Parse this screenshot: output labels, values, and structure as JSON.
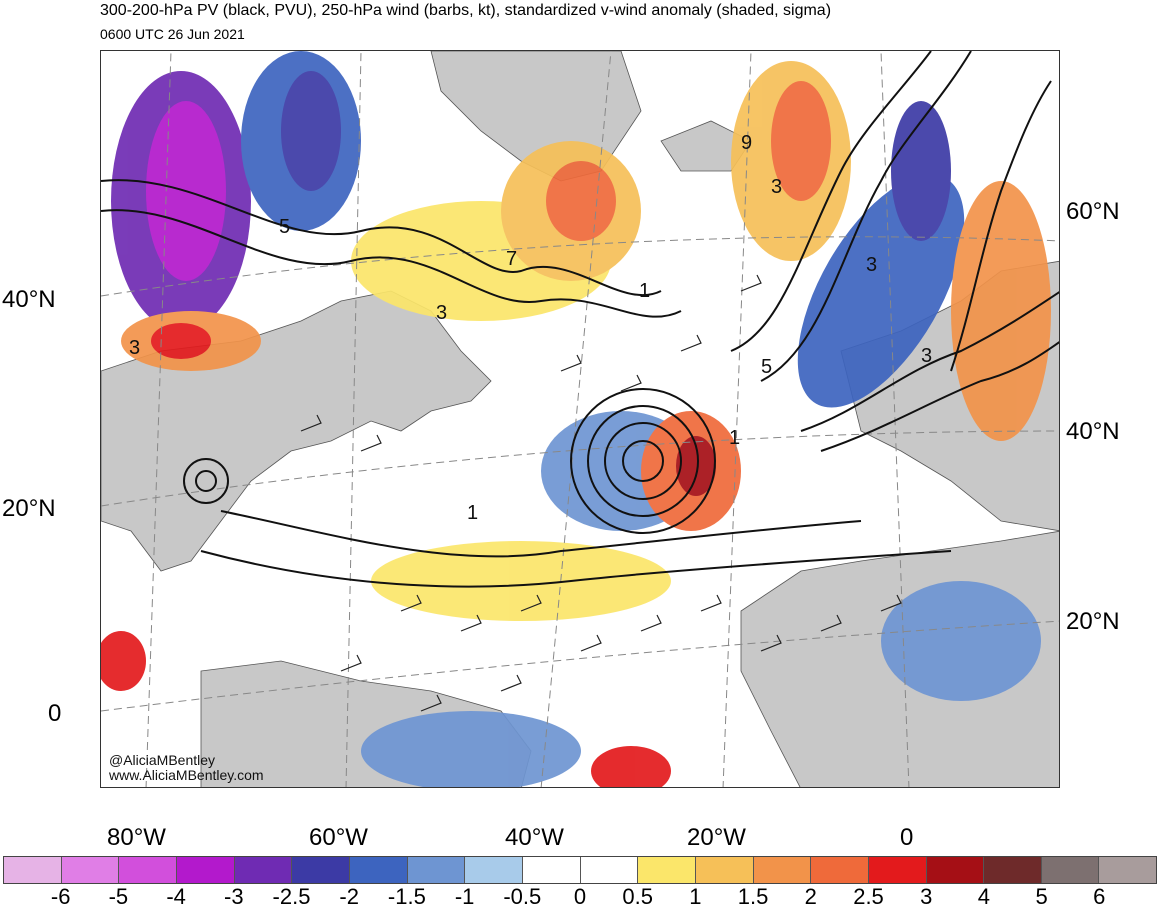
{
  "header": {
    "title": "300-200-hPa PV (black, PVU), 250-hPa wind (barbs, kt), standardized v-wind anomaly (shaded, sigma)",
    "valid_time": "0600 UTC 26 Jun 2021"
  },
  "credits": {
    "handle": "@AliciaMBentley",
    "website": "www.AliciaMBentley.com"
  },
  "axes": {
    "left_lat": [
      "40°N",
      "20°N",
      "0"
    ],
    "right_lat": [
      "60°N",
      "40°N",
      "20°N"
    ],
    "bottom_lon": [
      "80°W",
      "60°W",
      "40°W",
      "20°W",
      "0"
    ]
  },
  "contour_labels": [
    "5",
    "3",
    "7",
    "9",
    "3",
    "1",
    "5",
    "3",
    "1",
    "1",
    "3",
    "3"
  ],
  "colorbar": {
    "ticks": [
      "-6",
      "-5",
      "-4",
      "-3",
      "-2.5",
      "-2",
      "-1.5",
      "-1",
      "-0.5",
      "0",
      "0.5",
      "1",
      "1.5",
      "2",
      "2.5",
      "3",
      "4",
      "5",
      "6"
    ],
    "colors": [
      "#e6b3e6",
      "#e07ee6",
      "#d24fdc",
      "#b319cc",
      "#6f2bb3",
      "#3c3aa5",
      "#3d64bf",
      "#6e95d2",
      "#a8cbea",
      "#ffffff",
      "#ffffff",
      "#fbe66a",
      "#f6c058",
      "#f2934a",
      "#ef6a3a",
      "#e31a1c",
      "#a50f15",
      "#6e2a2a",
      "#7d7070",
      "#a89c9c"
    ]
  }
}
